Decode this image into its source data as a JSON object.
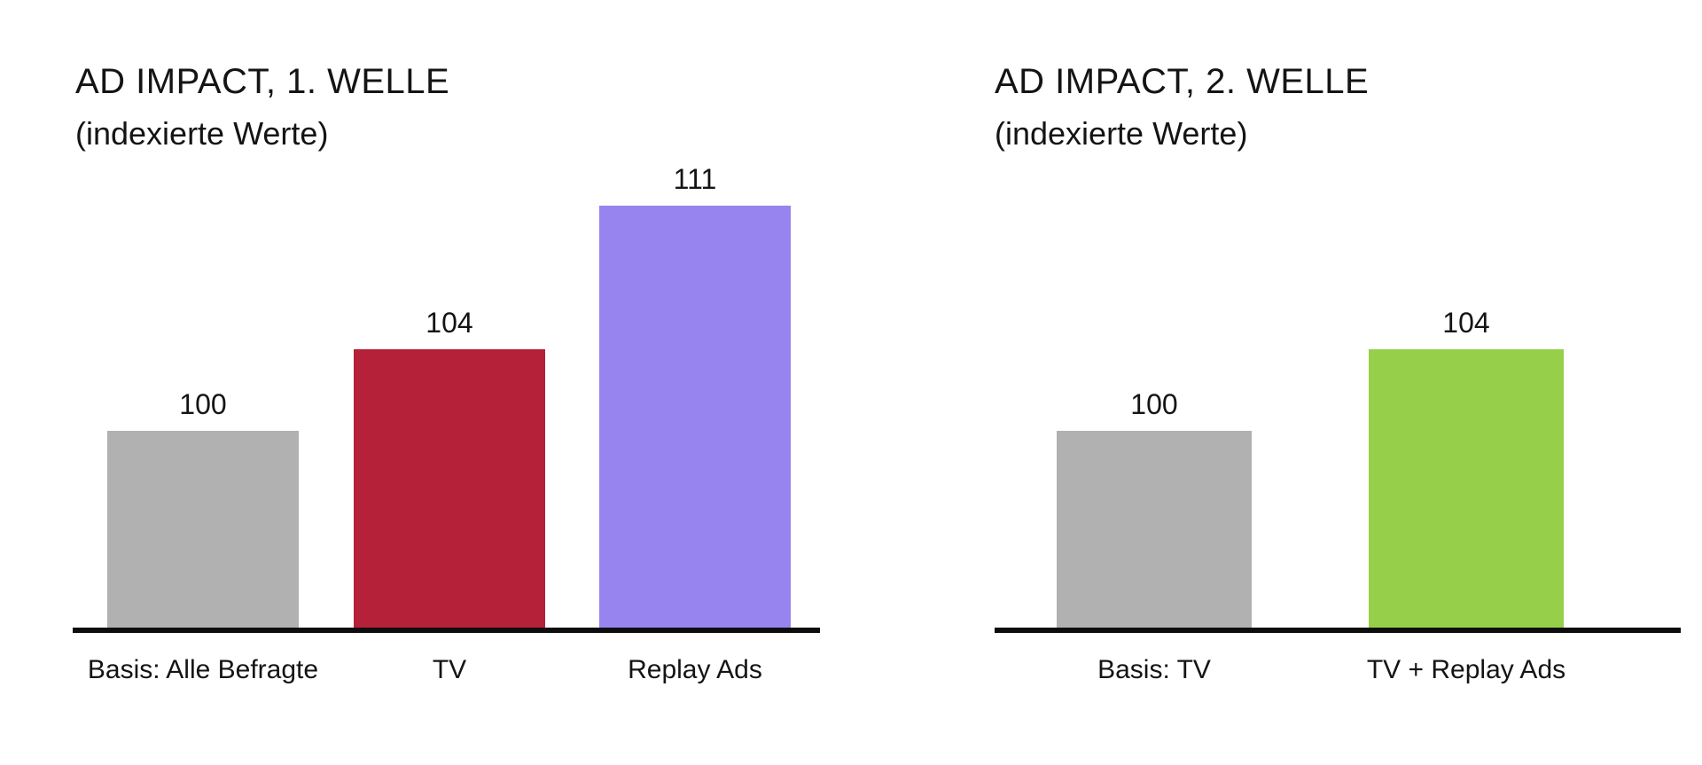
{
  "chart_data": [
    {
      "type": "bar",
      "title": "AD IMPACT, 1. WELLE",
      "subtitle": "(indexierte Werte)",
      "categories": [
        "Basis: Alle Befragte",
        "TV",
        "Replay Ads"
      ],
      "values": [
        100,
        104,
        111
      ],
      "data_labels": [
        "100",
        "104",
        "111"
      ],
      "bar_colors": [
        "#b1b1b1",
        "#b52138",
        "#9884ee"
      ],
      "xlabel": "",
      "ylabel": "",
      "ylim": [
        90,
        112
      ],
      "axis_style": "single black baseline, no y-axis, no gridlines",
      "legend": "none"
    },
    {
      "type": "bar",
      "title": "AD IMPACT, 2. WELLE",
      "subtitle": "(indexierte Werte)",
      "categories": [
        "Basis: TV",
        "TV + Replay Ads"
      ],
      "values": [
        100,
        104
      ],
      "data_labels": [
        "100",
        "104"
      ],
      "bar_colors": [
        "#b1b1b1",
        "#96cf4a"
      ],
      "xlabel": "",
      "ylabel": "",
      "ylim": [
        90,
        112
      ],
      "axis_style": "single black baseline, no y-axis, no gridlines",
      "legend": "none"
    }
  ],
  "colors": {
    "background": "#ffffff",
    "text": "#141414",
    "baseline": "#0d0d0d",
    "gray_bar": "#b1b1b1",
    "red_bar": "#b52138",
    "purple_bar": "#9884ee",
    "green_bar": "#96cf4a"
  }
}
